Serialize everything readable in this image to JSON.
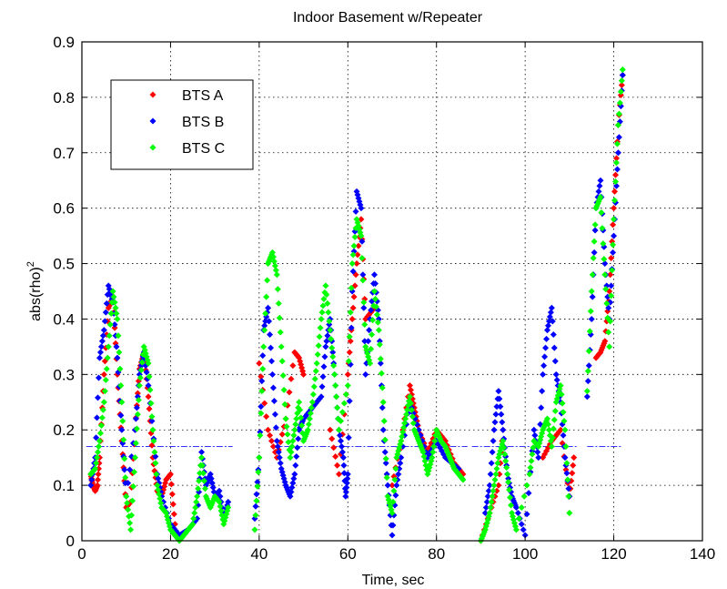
{
  "chart_data": {
    "type": "scatter",
    "title": "Indoor Basement w/Repeater",
    "xlabel": "Time, sec",
    "ylabel": "abs(rho)",
    "ylabel_superscript": "2",
    "xlim": [
      0,
      140
    ],
    "ylim": [
      0,
      0.9
    ],
    "xticks": [
      "0",
      "20",
      "40",
      "60",
      "80",
      "100",
      "120",
      "140"
    ],
    "yticks": [
      "0",
      "0.1",
      "0.2",
      "0.3",
      "0.4",
      "0.5",
      "0.6",
      "0.7",
      "0.8",
      "0.9"
    ],
    "grid": true,
    "legend_position": "top-left",
    "threshold": {
      "y": 0.17,
      "color": "#0000ff",
      "segments": [
        [
          1,
          34
        ],
        [
          43,
          87
        ],
        [
          88,
          112
        ],
        [
          114,
          122
        ]
      ]
    },
    "series": [
      {
        "name": "BTS A",
        "color": "#ff0000",
        "points": [
          [
            2,
            0.12
          ],
          [
            2.5,
            0.1
          ],
          [
            3,
            0.09
          ],
          [
            3.5,
            0.1
          ],
          [
            4,
            0.15
          ],
          [
            5,
            0.3
          ],
          [
            6,
            0.42
          ],
          [
            7,
            0.44
          ],
          [
            8,
            0.3
          ],
          [
            9,
            0.18
          ],
          [
            10,
            0.06
          ],
          [
            11,
            0.07
          ],
          [
            12,
            0.2
          ],
          [
            13,
            0.31
          ],
          [
            14,
            0.34
          ],
          [
            15,
            0.26
          ],
          [
            16,
            0.15
          ],
          [
            17,
            0.09
          ],
          [
            18,
            0.08
          ],
          [
            19,
            0.11
          ],
          [
            20,
            0.12
          ],
          [
            21,
            0.03
          ],
          [
            40,
            0.32
          ],
          [
            42,
            0.2
          ],
          [
            44,
            0.15
          ],
          [
            46,
            0.22
          ],
          [
            48,
            0.34
          ],
          [
            49,
            0.33
          ],
          [
            50,
            0.3
          ],
          [
            56,
            0.2
          ],
          [
            58,
            0.12
          ],
          [
            60,
            0.3
          ],
          [
            61,
            0.4
          ],
          [
            62,
            0.5
          ],
          [
            63,
            0.58
          ],
          [
            64,
            0.4
          ],
          [
            66,
            0.42
          ],
          [
            70,
            0.1
          ],
          [
            72,
            0.18
          ],
          [
            74,
            0.28
          ],
          [
            75,
            0.24
          ],
          [
            76,
            0.2
          ],
          [
            78,
            0.16
          ],
          [
            80,
            0.2
          ],
          [
            82,
            0.18
          ],
          [
            84,
            0.14
          ],
          [
            86,
            0.12
          ],
          [
            90,
            0.0
          ],
          [
            92,
            0.05
          ],
          [
            94,
            0.1
          ],
          [
            95,
            0.2
          ],
          [
            104,
            0.15
          ],
          [
            106,
            0.18
          ],
          [
            108,
            0.2
          ],
          [
            110,
            0.08
          ],
          [
            111,
            0.15
          ],
          [
            116,
            0.33
          ],
          [
            117,
            0.34
          ],
          [
            118,
            0.36
          ],
          [
            119,
            0.45
          ],
          [
            120,
            0.6
          ],
          [
            121,
            0.75
          ],
          [
            122,
            0.84
          ]
        ]
      },
      {
        "name": "BTS B",
        "color": "#0000ff",
        "points": [
          [
            2,
            0.1
          ],
          [
            3,
            0.15
          ],
          [
            4,
            0.33
          ],
          [
            5,
            0.38
          ],
          [
            6,
            0.46
          ],
          [
            7,
            0.43
          ],
          [
            8,
            0.33
          ],
          [
            9,
            0.2
          ],
          [
            10,
            0.08
          ],
          [
            12,
            0.2
          ],
          [
            13,
            0.3
          ],
          [
            14,
            0.34
          ],
          [
            15,
            0.28
          ],
          [
            17,
            0.12
          ],
          [
            18,
            0.08
          ],
          [
            20,
            0.03
          ],
          [
            22,
            0.01
          ],
          [
            24,
            0.02
          ],
          [
            26,
            0.04
          ],
          [
            27,
            0.16
          ],
          [
            28,
            0.1
          ],
          [
            29,
            0.12
          ],
          [
            30,
            0.08
          ],
          [
            31,
            0.09
          ],
          [
            32,
            0.04
          ],
          [
            33,
            0.07
          ],
          [
            39,
            0.04
          ],
          [
            40,
            0.15
          ],
          [
            41,
            0.38
          ],
          [
            42,
            0.42
          ],
          [
            43,
            0.3
          ],
          [
            44,
            0.18
          ],
          [
            45,
            0.13
          ],
          [
            46,
            0.1
          ],
          [
            47,
            0.08
          ],
          [
            48,
            0.12
          ],
          [
            49,
            0.2
          ],
          [
            50,
            0.22
          ],
          [
            52,
            0.24
          ],
          [
            54,
            0.26
          ],
          [
            55,
            0.35
          ],
          [
            56,
            0.4
          ],
          [
            57,
            0.3
          ],
          [
            58,
            0.2
          ],
          [
            59,
            0.15
          ],
          [
            59.5,
            0.08
          ],
          [
            60,
            0.12
          ],
          [
            61,
            0.45
          ],
          [
            62,
            0.63
          ],
          [
            63,
            0.6
          ],
          [
            64,
            0.3
          ],
          [
            65,
            0.4
          ],
          [
            66,
            0.48
          ],
          [
            67,
            0.4
          ],
          [
            68,
            0.2
          ],
          [
            69,
            0.1
          ],
          [
            70,
            0.01
          ],
          [
            71,
            0.1
          ],
          [
            72,
            0.15
          ],
          [
            74,
            0.25
          ],
          [
            76,
            0.2
          ],
          [
            78,
            0.15
          ],
          [
            80,
            0.18
          ],
          [
            82,
            0.15
          ],
          [
            85,
            0.13
          ],
          [
            91,
            0.05
          ],
          [
            92,
            0.1
          ],
          [
            93,
            0.2
          ],
          [
            94,
            0.27
          ],
          [
            95,
            0.2
          ],
          [
            96,
            0.12
          ],
          [
            97,
            0.08
          ],
          [
            98,
            0.06
          ],
          [
            100,
            0.01
          ],
          [
            102,
            0.2
          ],
          [
            103,
            0.15
          ],
          [
            104,
            0.3
          ],
          [
            105,
            0.38
          ],
          [
            106,
            0.42
          ],
          [
            107,
            0.3
          ],
          [
            108,
            0.25
          ],
          [
            109,
            0.15
          ],
          [
            110,
            0.08
          ],
          [
            114,
            0.26
          ],
          [
            115,
            0.4
          ],
          [
            116,
            0.6
          ],
          [
            117,
            0.65
          ],
          [
            118,
            0.5
          ],
          [
            119,
            0.4
          ],
          [
            120,
            0.55
          ],
          [
            121,
            0.7
          ],
          [
            122,
            0.84
          ]
        ]
      },
      {
        "name": "BTS C",
        "color": "#00ff00",
        "points": [
          [
            2,
            0.12
          ],
          [
            3,
            0.13
          ],
          [
            4,
            0.18
          ],
          [
            5,
            0.25
          ],
          [
            6,
            0.35
          ],
          [
            7,
            0.45
          ],
          [
            8,
            0.4
          ],
          [
            9,
            0.25
          ],
          [
            10,
            0.08
          ],
          [
            11,
            0.02
          ],
          [
            12,
            0.15
          ],
          [
            13,
            0.28
          ],
          [
            14,
            0.35
          ],
          [
            15,
            0.32
          ],
          [
            16,
            0.2
          ],
          [
            17,
            0.1
          ],
          [
            18,
            0.06
          ],
          [
            19,
            0.05
          ],
          [
            20,
            0.02
          ],
          [
            21,
            0.01
          ],
          [
            22,
            0.0
          ],
          [
            23,
            0.01
          ],
          [
            24,
            0.02
          ],
          [
            25,
            0.03
          ],
          [
            26,
            0.08
          ],
          [
            27,
            0.15
          ],
          [
            28,
            0.08
          ],
          [
            29,
            0.06
          ],
          [
            30,
            0.08
          ],
          [
            31,
            0.07
          ],
          [
            32,
            0.03
          ],
          [
            33,
            0.06
          ],
          [
            39,
            0.02
          ],
          [
            40,
            0.15
          ],
          [
            41,
            0.35
          ],
          [
            42,
            0.5
          ],
          [
            43,
            0.52
          ],
          [
            44,
            0.48
          ],
          [
            45,
            0.35
          ],
          [
            46,
            0.22
          ],
          [
            47,
            0.15
          ],
          [
            48,
            0.2
          ],
          [
            49,
            0.25
          ],
          [
            50,
            0.18
          ],
          [
            51,
            0.2
          ],
          [
            52,
            0.25
          ],
          [
            53,
            0.32
          ],
          [
            54,
            0.4
          ],
          [
            55,
            0.46
          ],
          [
            56,
            0.38
          ],
          [
            57,
            0.3
          ],
          [
            58,
            0.2
          ],
          [
            60,
            0.28
          ],
          [
            61,
            0.5
          ],
          [
            62,
            0.58
          ],
          [
            63,
            0.55
          ],
          [
            64,
            0.35
          ],
          [
            65,
            0.32
          ],
          [
            66,
            0.45
          ],
          [
            67,
            0.38
          ],
          [
            68,
            0.25
          ],
          [
            69,
            0.08
          ],
          [
            70,
            0.05
          ],
          [
            71,
            0.15
          ],
          [
            72,
            0.18
          ],
          [
            73,
            0.22
          ],
          [
            74,
            0.26
          ],
          [
            75,
            0.2
          ],
          [
            76,
            0.18
          ],
          [
            77,
            0.16
          ],
          [
            78,
            0.12
          ],
          [
            79,
            0.15
          ],
          [
            80,
            0.2
          ],
          [
            81,
            0.18
          ],
          [
            82,
            0.17
          ],
          [
            83,
            0.15
          ],
          [
            84,
            0.13
          ],
          [
            85,
            0.12
          ],
          [
            86,
            0.11
          ],
          [
            90,
            0.0
          ],
          [
            91,
            0.02
          ],
          [
            92,
            0.05
          ],
          [
            93,
            0.1
          ],
          [
            94,
            0.15
          ],
          [
            95,
            0.18
          ],
          [
            96,
            0.12
          ],
          [
            97,
            0.05
          ],
          [
            98,
            0.02
          ],
          [
            101,
            0.12
          ],
          [
            102,
            0.18
          ],
          [
            103,
            0.17
          ],
          [
            104,
            0.2
          ],
          [
            105,
            0.22
          ],
          [
            106,
            0.17
          ],
          [
            107,
            0.25
          ],
          [
            108,
            0.28
          ],
          [
            109,
            0.2
          ],
          [
            110,
            0.05
          ],
          [
            114,
            0.27
          ],
          [
            115,
            0.45
          ],
          [
            116,
            0.6
          ],
          [
            117,
            0.62
          ],
          [
            118,
            0.48
          ],
          [
            119,
            0.35
          ],
          [
            120,
            0.58
          ],
          [
            121,
            0.75
          ],
          [
            122,
            0.85
          ]
        ]
      }
    ]
  }
}
